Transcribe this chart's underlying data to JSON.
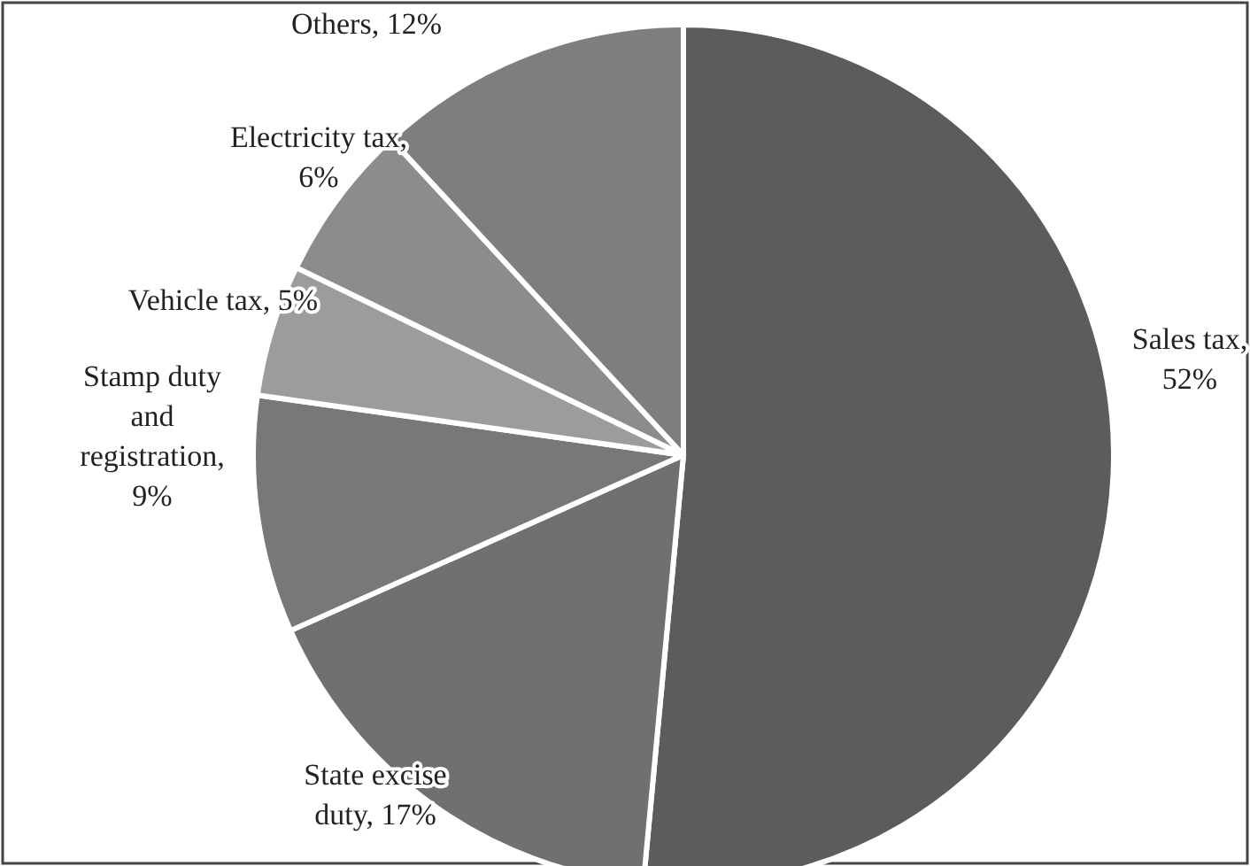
{
  "chart_data": {
    "type": "pie",
    "categories": [
      "Sales tax, 52%",
      "State excise duty, 17%",
      "Stamp duty and registration, 9%",
      "Vehicle tax, 5%",
      "Electricity tax, 6%",
      "Others, 12%"
    ],
    "values": [
      52,
      17,
      9,
      5,
      6,
      12
    ],
    "colors": [
      "#5c5c5c",
      "#707070",
      "#787878",
      "#9c9c9c",
      "#8c8c8c",
      "#7e7e7e"
    ]
  }
}
